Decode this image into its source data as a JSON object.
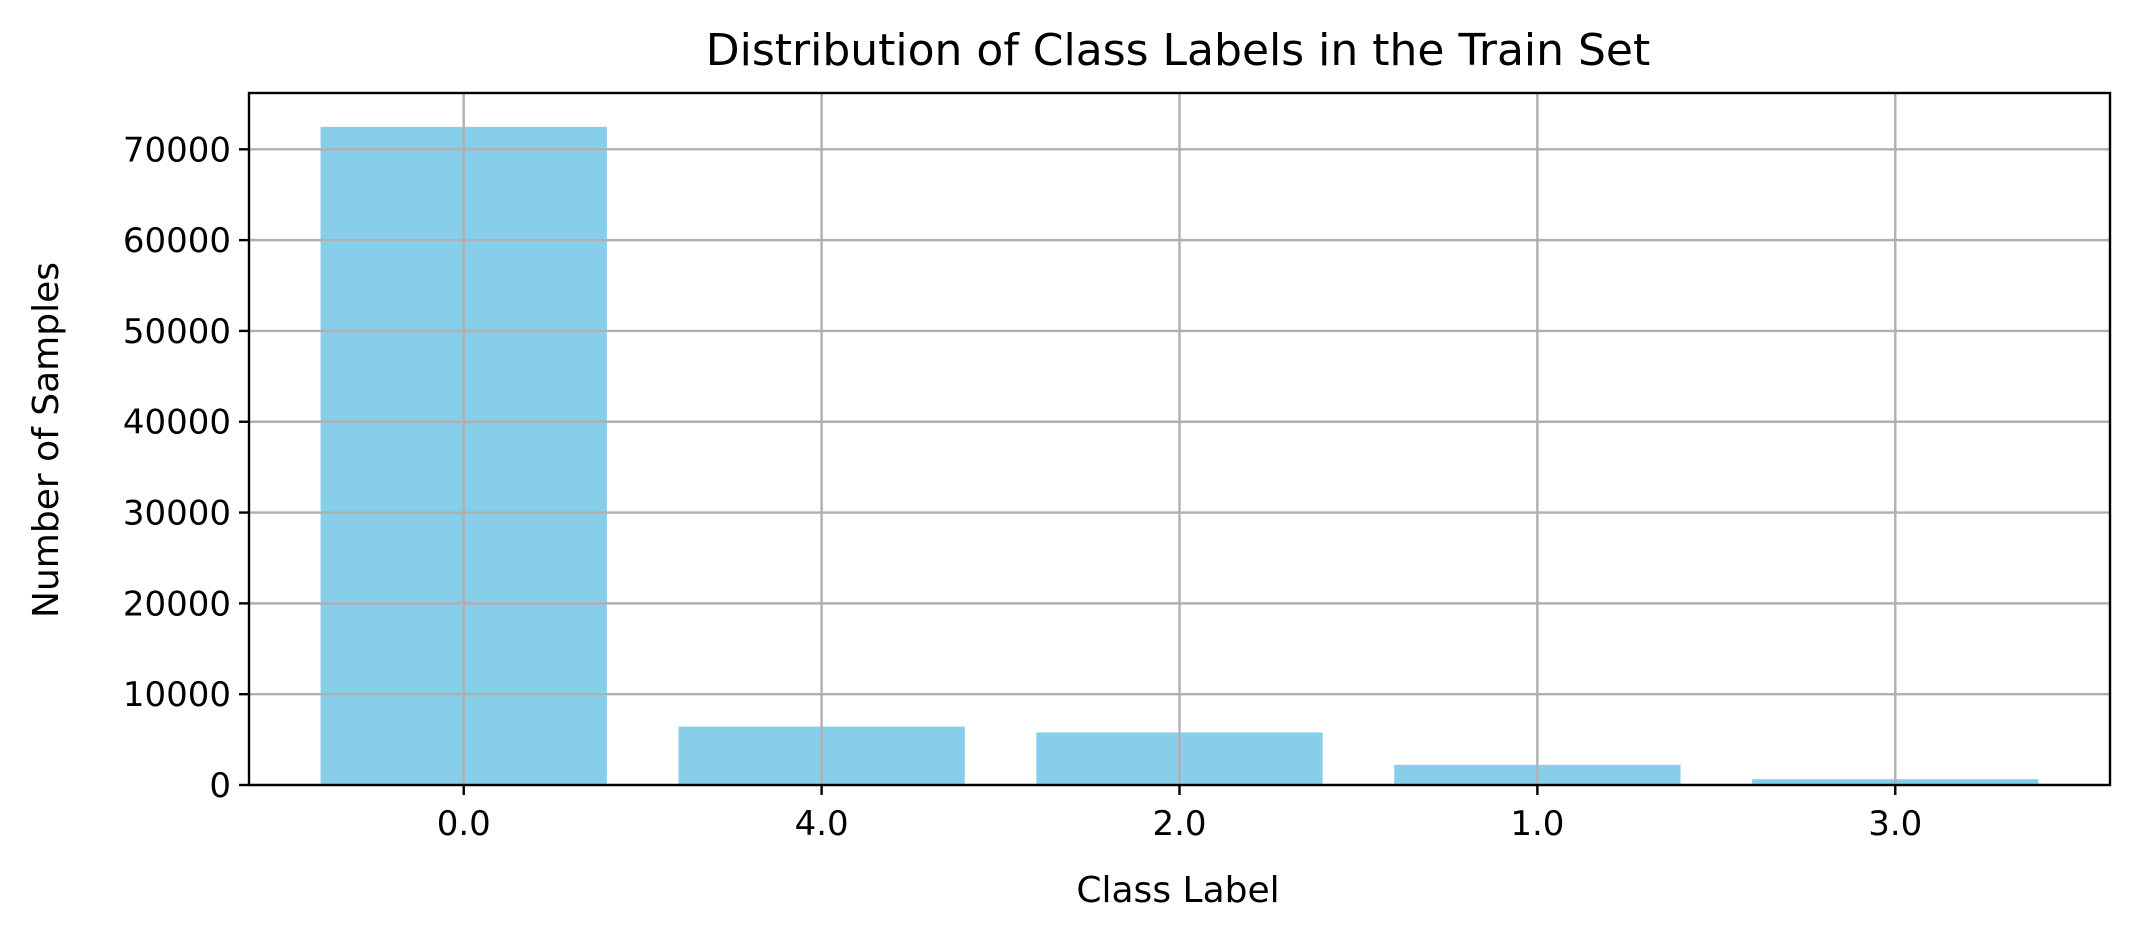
{
  "chart_data": {
    "type": "bar",
    "title": "Distribution of Class Labels in the Train Set",
    "xlabel": "Class Label",
    "ylabel": "Number of Samples",
    "categories": [
      "0.0",
      "4.0",
      "2.0",
      "1.0",
      "3.0"
    ],
    "values": [
      72470,
      6430,
      5790,
      2220,
      640
    ],
    "ylim": [
      0,
      76200
    ],
    "yticks": [
      0,
      10000,
      20000,
      30000,
      40000,
      50000,
      60000,
      70000
    ],
    "grid": true,
    "bar_color": "#87CEEB",
    "grid_color": "#b0b0b0",
    "axis_color": "#000000"
  }
}
